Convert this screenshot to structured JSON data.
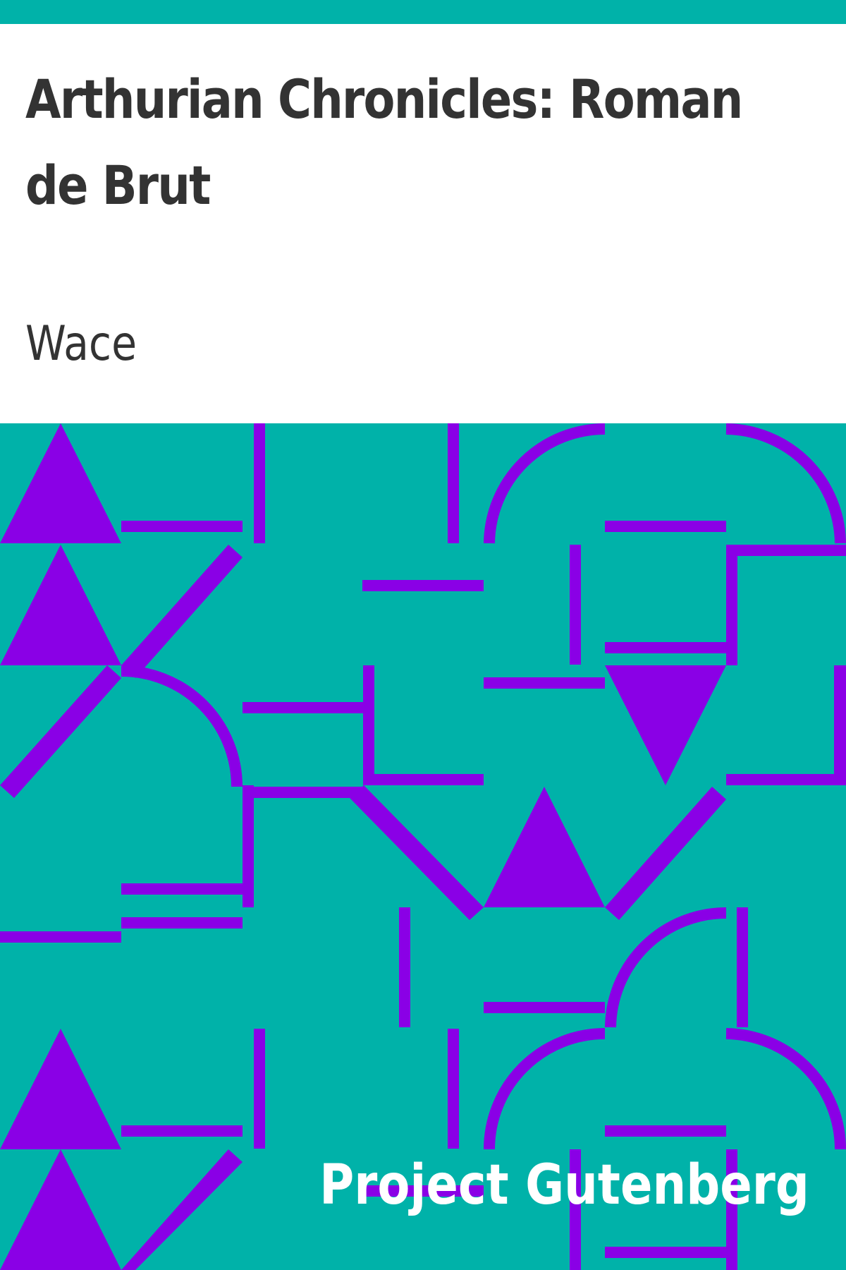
{
  "cover": {
    "title": "Arthurian Chronicles: Roman de Brut",
    "author": "Wace",
    "publisher": "Project Gutenberg"
  },
  "colors": {
    "background": "#00b2a9",
    "pattern": "#8a00e6",
    "title_area": "#ffffff",
    "text": "#333333",
    "publisher_text": "#ffffff"
  }
}
